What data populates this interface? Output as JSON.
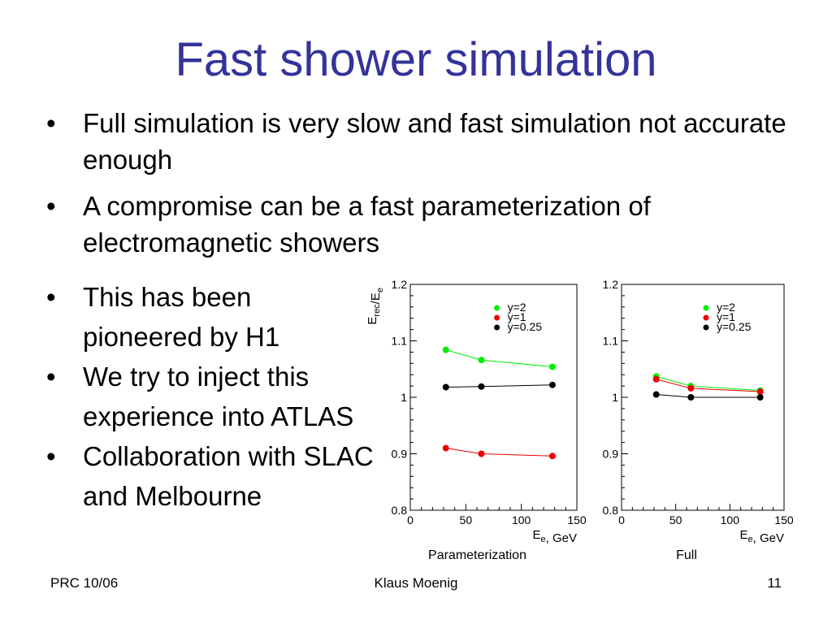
{
  "slide": {
    "title": "Fast shower simulation",
    "bullet_glyph": "•",
    "bullets_top": [
      "Full simulation is very slow and fast simulation not accurate enough",
      "A compromise can be a fast parameterization of electromagnetic showers"
    ],
    "bullets_side": [
      "This has been pioneered by H1",
      "We try to inject this experience into ATLAS",
      "Collaboration with SLAC and Melbourne"
    ],
    "footer_left": "PRC 10/06",
    "footer_center": "Klaus Moenig",
    "footer_right": "11"
  },
  "chart_data": [
    {
      "type": "line",
      "title": "Parameterization",
      "xlabel": "E_e, GeV",
      "ylabel": "E_rec/E_e",
      "xlim": [
        0,
        150
      ],
      "ylim": [
        0.8,
        1.2
      ],
      "xticks": [
        "0",
        "50",
        "100",
        "150"
      ],
      "yticks": [
        "0.8",
        "0.9",
        "1",
        "1.1",
        "1.2"
      ],
      "grid": false,
      "legend": "top-right",
      "series": [
        {
          "name": "y=2",
          "color": "#00ee00",
          "x": [
            32,
            64,
            128
          ],
          "y": [
            1.084,
            1.066,
            1.054
          ]
        },
        {
          "name": "y=1",
          "color": "#ee0000",
          "x": [
            32,
            64,
            128
          ],
          "y": [
            0.91,
            0.9,
            0.896
          ]
        },
        {
          "name": "y=0.25",
          "color": "#000000",
          "x": [
            32,
            64,
            128
          ],
          "y": [
            1.018,
            1.019,
            1.022
          ]
        }
      ]
    },
    {
      "type": "line",
      "title": "Full",
      "xlabel": "E_e, GeV",
      "ylabel": "",
      "xlim": [
        0,
        150
      ],
      "ylim": [
        0.8,
        1.2
      ],
      "xticks": [
        "0",
        "50",
        "100",
        "150"
      ],
      "yticks": [
        "0.8",
        "0.9",
        "1",
        "1.1",
        "1.2"
      ],
      "grid": false,
      "legend": "top-right",
      "series": [
        {
          "name": "y=2",
          "color": "#00ee00",
          "x": [
            32,
            64,
            128
          ],
          "y": [
            1.037,
            1.02,
            1.012
          ]
        },
        {
          "name": "y=1",
          "color": "#ee0000",
          "x": [
            32,
            64,
            128
          ],
          "y": [
            1.032,
            1.016,
            1.01
          ]
        },
        {
          "name": "y=0.25",
          "color": "#000000",
          "x": [
            32,
            64,
            128
          ],
          "y": [
            1.005,
            1.0,
            1.0
          ]
        }
      ]
    }
  ]
}
